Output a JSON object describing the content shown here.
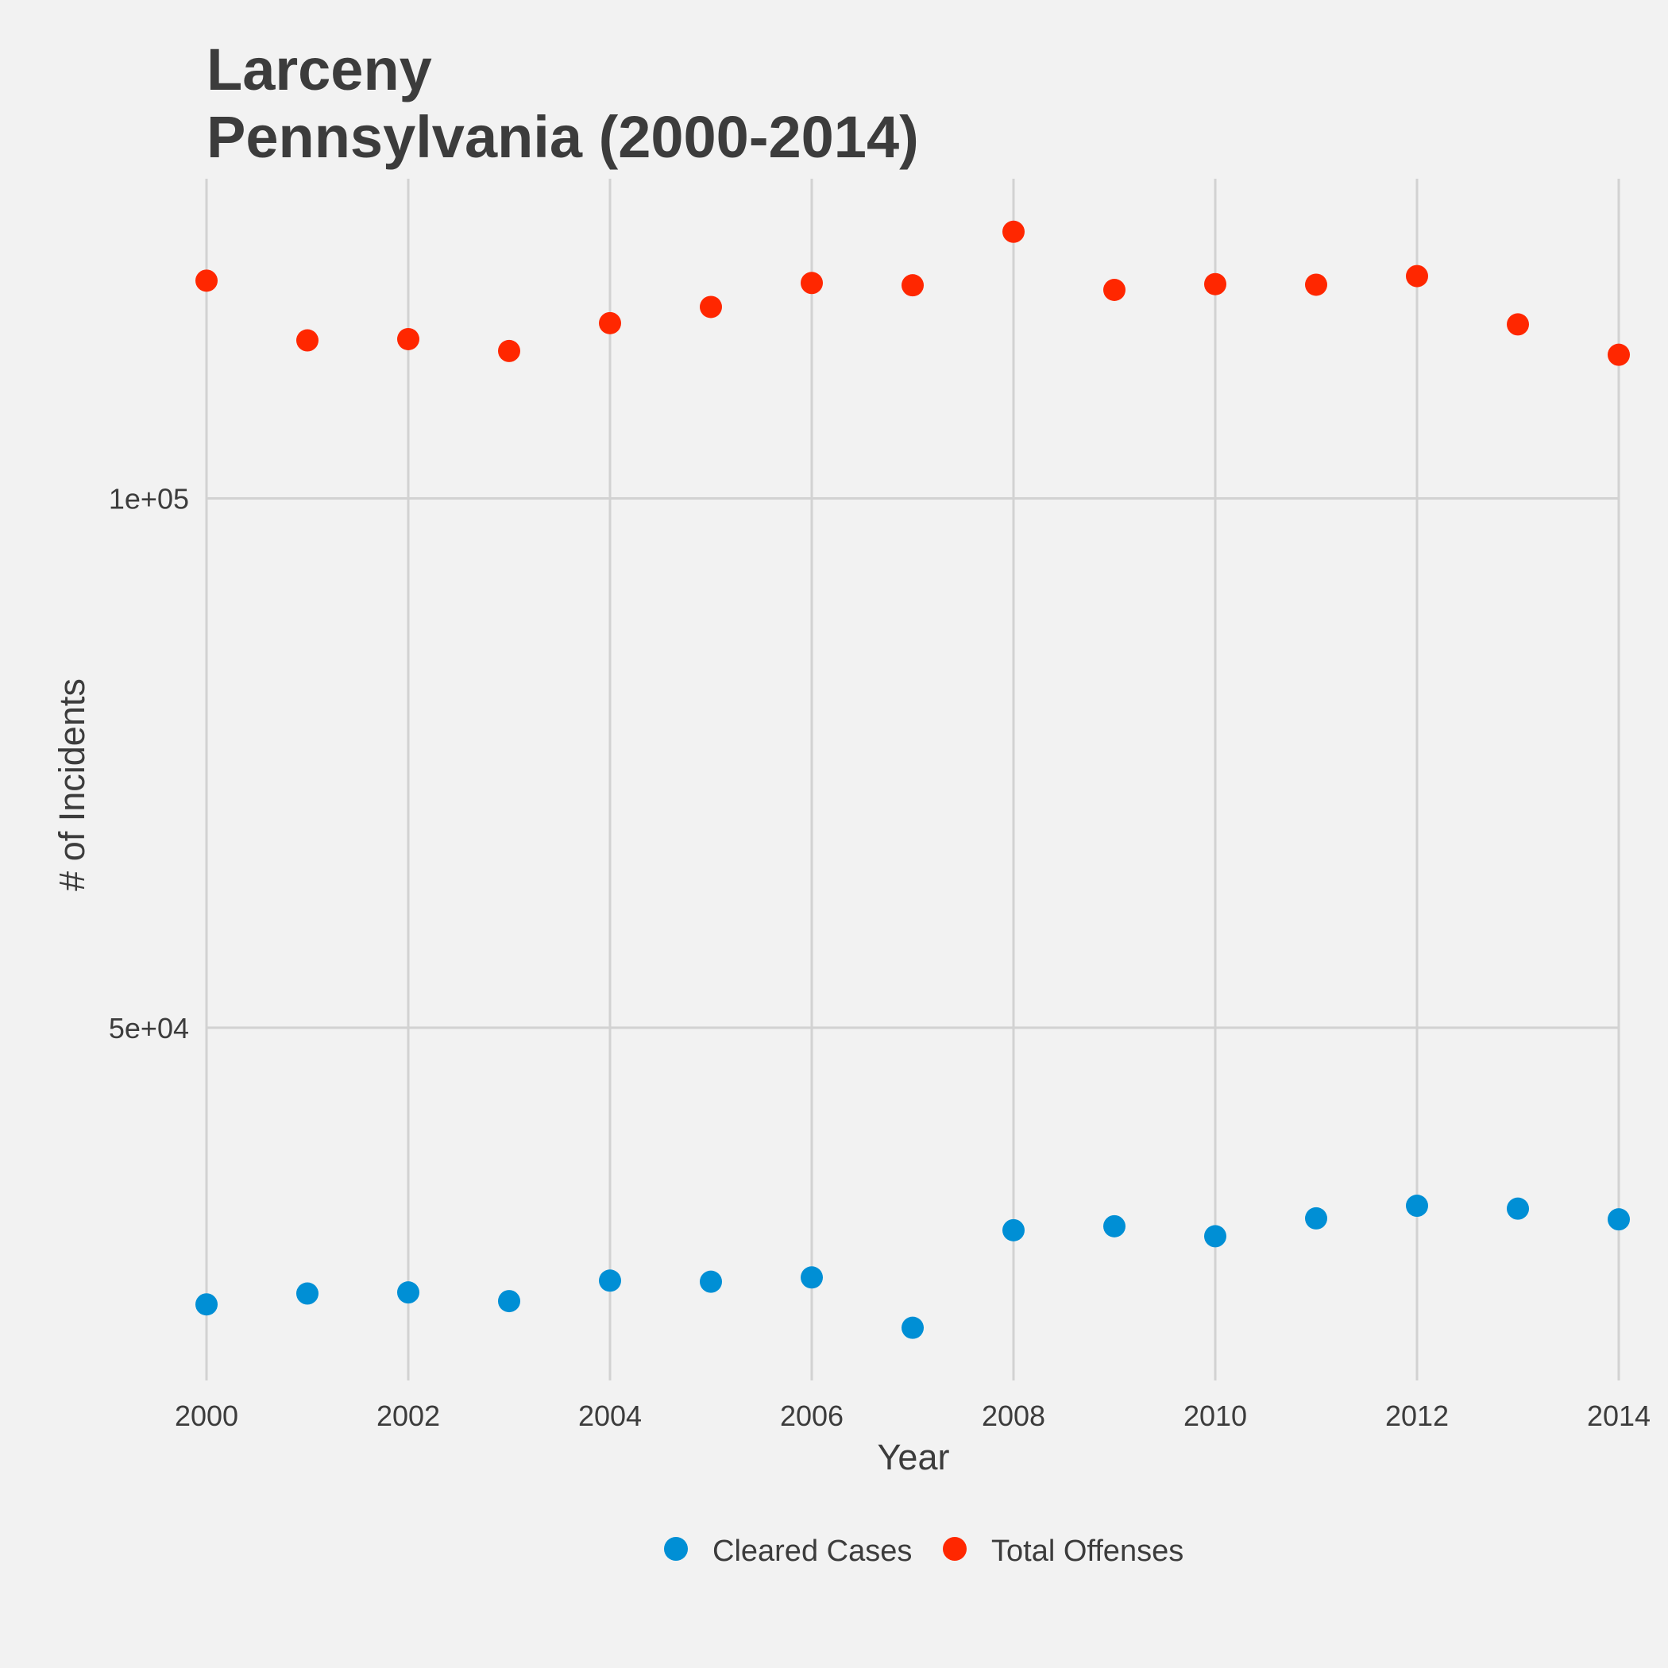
{
  "chart_data": {
    "type": "scatter",
    "title_lines": [
      "Larceny",
      "Pennsylvania (2000-2014)"
    ],
    "xlabel": "Year",
    "ylabel": "# of Incidents",
    "x": [
      2000,
      2001,
      2002,
      2003,
      2004,
      2005,
      2006,
      2007,
      2008,
      2009,
      2010,
      2011,
      2012,
      2013,
      2014
    ],
    "xlim": [
      2000,
      2014
    ],
    "x_ticks": [
      2000,
      2002,
      2004,
      2006,
      2008,
      2010,
      2012,
      2014
    ],
    "x_tick_labels": [
      "2000",
      "2002",
      "2004",
      "2006",
      "2008",
      "2010",
      "2012",
      "2014"
    ],
    "y_scale": "log",
    "ylim": [
      31500,
      152000
    ],
    "y_ticks": [
      50000,
      100000
    ],
    "y_tick_labels": [
      "5e+04",
      "1e+05"
    ],
    "grid": true,
    "legend_position": "bottom",
    "series": [
      {
        "name": "Cleared Cases",
        "color": "#008fd5",
        "values": [
          34800,
          35300,
          35350,
          34950,
          35900,
          35850,
          36050,
          33750,
          38350,
          38550,
          38050,
          38950,
          39600,
          39450,
          38900
        ]
      },
      {
        "name": "Total Offenses",
        "color": "#ff2700",
        "values": [
          133000,
          123000,
          123200,
          121300,
          125800,
          128500,
          132600,
          132200,
          141800,
          131400,
          132400,
          132300,
          133800,
          125600,
          120700
        ]
      }
    ]
  }
}
